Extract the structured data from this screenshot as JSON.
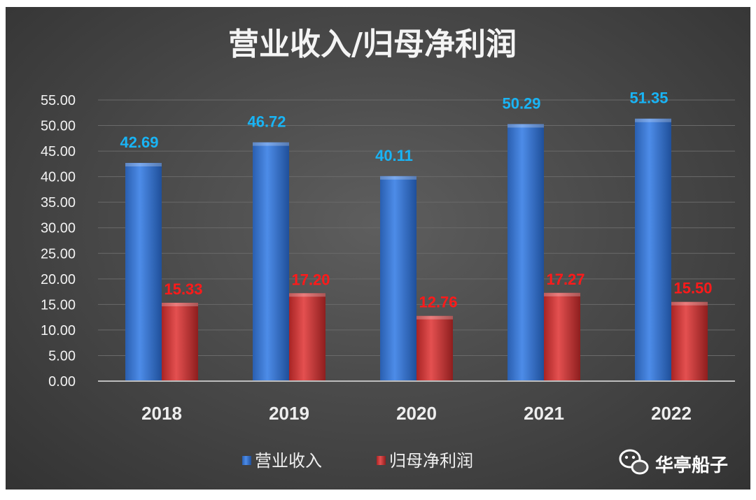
{
  "chart_data": {
    "type": "bar",
    "title": "营业收入/归母净利润",
    "categories": [
      "2018",
      "2019",
      "2020",
      "2021",
      "2022"
    ],
    "series": [
      {
        "name": "营业收入",
        "values": [
          42.69,
          46.72,
          40.11,
          50.29,
          51.35
        ],
        "color": "#3a78d2"
      },
      {
        "name": "归母净利润",
        "values": [
          15.33,
          17.2,
          12.76,
          17.27,
          15.5
        ],
        "color": "#d53c3c"
      }
    ],
    "value_labels": [
      [
        "42.69",
        "46.72",
        "40.11",
        "50.29",
        "51.35"
      ],
      [
        "15.33",
        "17.20",
        "12.76",
        "17.27",
        "15.50"
      ]
    ],
    "label_colors": [
      "#19b4f5",
      "#ff1a1a"
    ],
    "yticks": [
      "0.00",
      "5.00",
      "10.00",
      "15.00",
      "20.00",
      "25.00",
      "30.00",
      "35.00",
      "40.00",
      "45.00",
      "50.00",
      "55.00"
    ],
    "ylim": [
      0,
      55
    ],
    "grid": true,
    "legend_position": "bottom",
    "xlabel": "",
    "ylabel": ""
  },
  "watermark": {
    "text": "华亭船子",
    "icon": "wechat-icon"
  }
}
